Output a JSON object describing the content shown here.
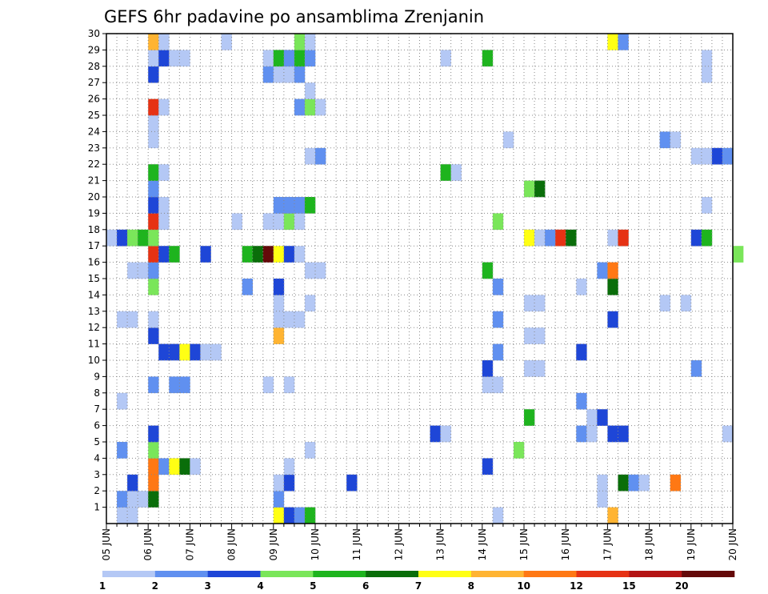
{
  "chart_data": {
    "type": "heatmap",
    "title": "GEFS 6hr padavine po ansamblima Zrenjanin",
    "xlabel": "",
    "ylabel": "",
    "x_tick_labels": [
      "05 JUN",
      "06 JUN",
      "07 JUN",
      "08 JUN",
      "09 JUN",
      "10 JUN",
      "11 JUN",
      "12 JUN",
      "13 JUN",
      "14 JUN",
      "15 JUN",
      "16 JUN",
      "17 JUN",
      "18 JUN",
      "19 JUN",
      "20 JUN"
    ],
    "x_range_days": [
      0,
      15
    ],
    "y_tick_labels": [
      "1",
      "2",
      "3",
      "4",
      "5",
      "6",
      "7",
      "8",
      "9",
      "10",
      "11",
      "12",
      "13",
      "14",
      "15",
      "16",
      "17",
      "18",
      "19",
      "20",
      "21",
      "22",
      "23",
      "24",
      "25",
      "26",
      "27",
      "28",
      "29",
      "30"
    ],
    "y_range": [
      0,
      30
    ],
    "grid": true,
    "legend": {
      "placement": "bottom",
      "bounds": [
        1,
        2,
        3,
        4,
        5,
        6,
        7,
        8,
        10,
        12,
        15,
        20
      ],
      "colors": [
        "#b4c8f5",
        "#6090f0",
        "#1e46d7",
        "#7ae65a",
        "#1eb41e",
        "#0a6e0a",
        "#ffff14",
        "#ffb432",
        "#ff7814",
        "#e63214",
        "#b41414",
        "#640a0a"
      ]
    },
    "cells": [
      [
        0.25,
        0,
        1
      ],
      [
        0.5,
        0,
        1
      ],
      [
        4.0,
        0,
        7
      ],
      [
        4.25,
        0,
        3
      ],
      [
        4.5,
        0,
        2
      ],
      [
        4.75,
        0,
        5
      ],
      [
        9.25,
        0,
        1
      ],
      [
        12.0,
        0,
        8
      ],
      [
        0.25,
        1,
        2
      ],
      [
        0.5,
        1,
        1
      ],
      [
        0.75,
        1,
        1
      ],
      [
        1.0,
        1,
        6
      ],
      [
        4.0,
        1,
        2
      ],
      [
        11.75,
        1,
        1
      ],
      [
        0.5,
        2,
        3
      ],
      [
        1.0,
        2,
        9
      ],
      [
        4.0,
        2,
        1
      ],
      [
        4.25,
        2,
        3
      ],
      [
        5.75,
        2,
        3
      ],
      [
        11.75,
        2,
        1
      ],
      [
        12.25,
        2,
        6
      ],
      [
        12.5,
        2,
        2
      ],
      [
        12.75,
        2,
        1
      ],
      [
        13.5,
        2,
        9
      ],
      [
        1.0,
        3,
        9
      ],
      [
        1.25,
        3,
        2
      ],
      [
        1.5,
        3,
        7
      ],
      [
        1.75,
        3,
        6
      ],
      [
        2.0,
        3,
        1
      ],
      [
        4.25,
        3,
        1
      ],
      [
        9.0,
        3,
        3
      ],
      [
        0.25,
        4,
        2
      ],
      [
        1.0,
        4,
        4
      ],
      [
        4.75,
        4,
        1
      ],
      [
        9.75,
        4,
        4
      ],
      [
        1.0,
        5,
        3
      ],
      [
        7.75,
        5,
        3
      ],
      [
        8.0,
        5,
        1
      ],
      [
        11.25,
        5,
        2
      ],
      [
        11.5,
        5,
        1
      ],
      [
        12.0,
        5,
        3
      ],
      [
        12.25,
        5,
        3
      ],
      [
        14.75,
        5,
        1
      ],
      [
        10.0,
        6,
        5
      ],
      [
        11.5,
        6,
        1
      ],
      [
        11.75,
        6,
        3
      ],
      [
        0.25,
        7,
        1
      ],
      [
        11.25,
        7,
        2
      ],
      [
        1.0,
        8,
        2
      ],
      [
        1.5,
        8,
        2
      ],
      [
        1.75,
        8,
        2
      ],
      [
        3.75,
        8,
        1
      ],
      [
        4.25,
        8,
        1
      ],
      [
        9.0,
        8,
        1
      ],
      [
        9.25,
        8,
        1
      ],
      [
        9.0,
        9,
        3
      ],
      [
        10.0,
        9,
        1
      ],
      [
        10.25,
        9,
        1
      ],
      [
        14.0,
        9,
        2
      ],
      [
        1.25,
        10,
        3
      ],
      [
        1.5,
        10,
        3
      ],
      [
        1.75,
        10,
        7
      ],
      [
        2.0,
        10,
        3
      ],
      [
        2.25,
        10,
        1
      ],
      [
        2.5,
        10,
        1
      ],
      [
        9.25,
        10,
        2
      ],
      [
        11.25,
        10,
        3
      ],
      [
        1.0,
        11,
        3
      ],
      [
        4.0,
        11,
        8
      ],
      [
        10.0,
        11,
        1
      ],
      [
        10.25,
        11,
        1
      ],
      [
        0.25,
        12,
        1
      ],
      [
        0.5,
        12,
        1
      ],
      [
        1.0,
        12,
        1
      ],
      [
        4.0,
        12,
        1
      ],
      [
        4.25,
        12,
        1
      ],
      [
        4.5,
        12,
        1
      ],
      [
        9.25,
        12,
        2
      ],
      [
        12.0,
        12,
        3
      ],
      [
        4.0,
        13,
        1
      ],
      [
        4.75,
        13,
        1
      ],
      [
        10.0,
        13,
        1
      ],
      [
        10.25,
        13,
        1
      ],
      [
        13.25,
        13,
        1
      ],
      [
        13.75,
        13,
        1
      ],
      [
        1.0,
        14,
        4
      ],
      [
        3.25,
        14,
        2
      ],
      [
        4.0,
        14,
        3
      ],
      [
        9.25,
        14,
        2
      ],
      [
        11.25,
        14,
        1
      ],
      [
        12.0,
        14,
        6
      ],
      [
        0.5,
        15,
        1
      ],
      [
        0.75,
        15,
        1
      ],
      [
        1.0,
        15,
        2
      ],
      [
        4.75,
        15,
        1
      ],
      [
        5.0,
        15,
        1
      ],
      [
        9.0,
        15,
        5
      ],
      [
        11.75,
        15,
        2
      ],
      [
        12.0,
        15,
        9
      ],
      [
        1.0,
        16,
        10
      ],
      [
        1.25,
        16,
        3
      ],
      [
        1.5,
        16,
        5
      ],
      [
        2.25,
        16,
        3
      ],
      [
        3.25,
        16,
        5
      ],
      [
        3.5,
        16,
        6
      ],
      [
        3.75,
        16,
        12
      ],
      [
        4.0,
        16,
        7
      ],
      [
        4.25,
        16,
        3
      ],
      [
        4.5,
        16,
        1
      ],
      [
        15.0,
        16,
        4
      ],
      [
        0.0,
        17,
        1
      ],
      [
        0.25,
        17,
        3
      ],
      [
        0.5,
        17,
        4
      ],
      [
        0.75,
        17,
        5
      ],
      [
        1.0,
        17,
        4
      ],
      [
        10.0,
        17,
        7
      ],
      [
        10.25,
        17,
        1
      ],
      [
        10.5,
        17,
        2
      ],
      [
        10.75,
        17,
        10
      ],
      [
        11.0,
        17,
        6
      ],
      [
        12.0,
        17,
        1
      ],
      [
        12.25,
        17,
        10
      ],
      [
        14.0,
        17,
        3
      ],
      [
        14.25,
        17,
        5
      ],
      [
        9.25,
        18,
        4
      ],
      [
        1.0,
        18,
        10
      ],
      [
        1.25,
        18,
        1
      ],
      [
        3.0,
        18,
        1
      ],
      [
        3.75,
        18,
        1
      ],
      [
        4.0,
        18,
        1
      ],
      [
        4.25,
        18,
        4
      ],
      [
        4.5,
        18,
        1
      ],
      [
        1.0,
        19,
        3
      ],
      [
        1.25,
        19,
        1
      ],
      [
        4.0,
        19,
        2
      ],
      [
        4.25,
        19,
        2
      ],
      [
        4.5,
        19,
        2
      ],
      [
        4.75,
        19,
        5
      ],
      [
        14.25,
        19,
        1
      ],
      [
        1.0,
        20,
        2
      ],
      [
        10.0,
        20,
        4
      ],
      [
        10.25,
        20,
        6
      ],
      [
        1.0,
        21,
        5
      ],
      [
        1.25,
        21,
        1
      ],
      [
        8.0,
        21,
        5
      ],
      [
        8.25,
        21,
        1
      ],
      [
        4.75,
        22,
        1
      ],
      [
        5.0,
        22,
        2
      ],
      [
        14.0,
        22,
        1
      ],
      [
        14.25,
        22,
        1
      ],
      [
        14.5,
        22,
        3
      ],
      [
        14.75,
        22,
        2
      ],
      [
        1.0,
        23,
        1
      ],
      [
        9.5,
        23,
        1
      ],
      [
        13.25,
        23,
        2
      ],
      [
        13.5,
        23,
        1
      ],
      [
        1.0,
        24,
        1
      ],
      [
        1.0,
        25,
        10
      ],
      [
        1.25,
        25,
        1
      ],
      [
        4.5,
        25,
        2
      ],
      [
        4.75,
        25,
        4
      ],
      [
        5.0,
        25,
        1
      ],
      [
        4.75,
        26,
        1
      ],
      [
        1.0,
        27,
        3
      ],
      [
        3.75,
        27,
        2
      ],
      [
        4.0,
        27,
        1
      ],
      [
        4.25,
        27,
        1
      ],
      [
        4.5,
        27,
        2
      ],
      [
        14.25,
        27,
        1
      ],
      [
        1.0,
        28,
        1
      ],
      [
        1.25,
        28,
        3
      ],
      [
        1.5,
        28,
        1
      ],
      [
        1.75,
        28,
        1
      ],
      [
        3.75,
        28,
        1
      ],
      [
        4.0,
        28,
        5
      ],
      [
        4.25,
        28,
        2
      ],
      [
        4.5,
        28,
        5
      ],
      [
        4.75,
        28,
        2
      ],
      [
        8.0,
        28,
        1
      ],
      [
        9.0,
        28,
        5
      ],
      [
        14.25,
        28,
        1
      ],
      [
        1.0,
        29,
        8
      ],
      [
        1.25,
        29,
        1
      ],
      [
        2.75,
        29,
        1
      ],
      [
        4.5,
        29,
        4
      ],
      [
        4.75,
        29,
        1
      ],
      [
        12.0,
        29,
        7
      ],
      [
        12.25,
        29,
        2
      ]
    ]
  }
}
